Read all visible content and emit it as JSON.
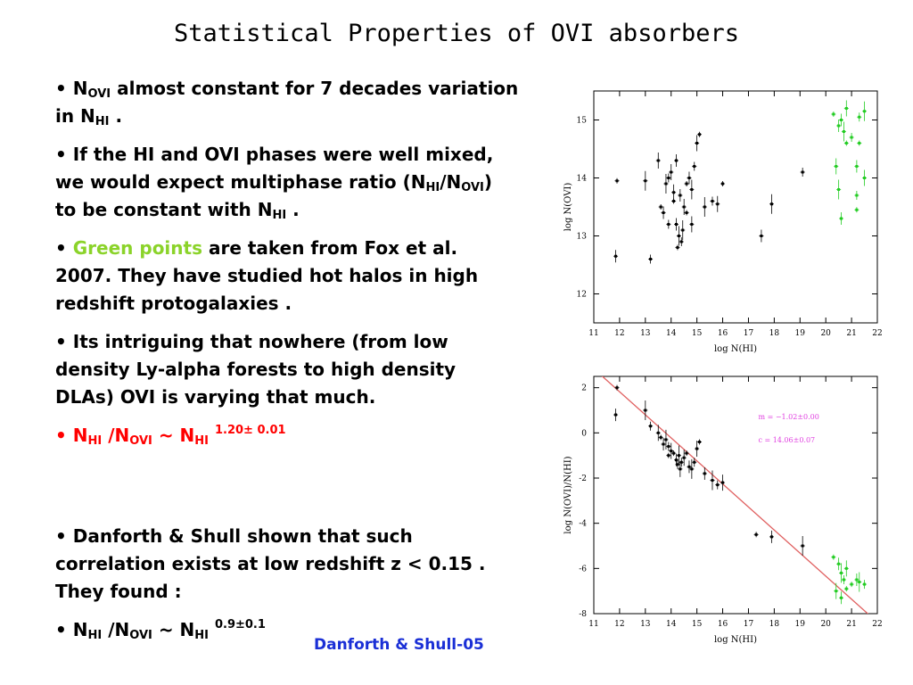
{
  "title": "Statistical Properties of OVI absorbers",
  "bullets": {
    "b1": {
      "dot": "•",
      "n": "N",
      "sub_ovi": "OVI",
      "t1": " almost constant for 7 decades variation in N",
      "sub_hi": "HI",
      "t2": " ."
    },
    "b2": {
      "dot": "•",
      "t1": " If the HI and OVI phases were well mixed, we would expect multiphase ratio (N",
      "sub1": "HI",
      "t2": "/N",
      "sub2": "OVI",
      "t3": ") to be constant with N",
      "sub3": "HI",
      "t4": " ."
    },
    "b3": {
      "dot": "•",
      "green": "Green points",
      "t1": " are taken from Fox et al. 2007.  They have studied hot halos in high redshift protogalaxies ."
    },
    "b4": {
      "dot": "•",
      "t1": " Its intriguing that nowhere (from low density Ly-alpha forests to high density DLAs) OVI is varying that much."
    },
    "b5": {
      "dot": "•",
      "n1": "N",
      "sub1": "HI",
      "t1": " /N",
      "sub2": "OVI",
      "t2": " ~ N",
      "sub3": "HI",
      "sup": "1.20± 0.01"
    },
    "b6": {
      "dot": "•",
      "t1": " Danforth & Shull shown that such correlation exists at low redshift z < 0.15 . They found :"
    },
    "b7": {
      "dot": "•",
      "n1": "N",
      "sub1": "HI",
      "t1": " /N",
      "sub2": "OVI",
      "t2": " ~ N",
      "sub3": "HI",
      "sup": "0.9±0.1"
    }
  },
  "citation": "Danforth & Shull-05",
  "colors": {
    "green": "#8bd32a",
    "red": "#ff0000",
    "citation": "#1a2fd6",
    "fit_line": "#e06060",
    "fit_text": "#e040e0"
  },
  "chart_data": [
    {
      "type": "scatter",
      "xlabel": "log N(HI)",
      "ylabel": "log N(OVI)",
      "xlim": [
        11,
        22
      ],
      "ylim": [
        11.5,
        15.5
      ],
      "xticks": [
        11,
        12,
        13,
        14,
        15,
        16,
        17,
        18,
        19,
        20,
        21,
        22
      ],
      "yticks": [
        12,
        13,
        14,
        15
      ],
      "series": [
        {
          "color": "#000000",
          "points": [
            [
              11.9,
              13.95
            ],
            [
              11.85,
              12.65
            ],
            [
              13.0,
              13.95
            ],
            [
              13.2,
              12.6
            ],
            [
              13.5,
              14.3
            ],
            [
              13.6,
              13.5
            ],
            [
              13.7,
              13.4
            ],
            [
              13.8,
              13.9
            ],
            [
              13.9,
              14.0
            ],
            [
              14.0,
              14.1
            ],
            [
              14.1,
              13.6
            ],
            [
              14.2,
              13.2
            ],
            [
              14.3,
              13.0
            ],
            [
              14.4,
              12.9
            ],
            [
              14.5,
              13.5
            ],
            [
              14.6,
              13.4
            ],
            [
              14.7,
              14.0
            ],
            [
              14.8,
              13.8
            ],
            [
              14.9,
              14.2
            ],
            [
              15.0,
              14.6
            ],
            [
              15.1,
              14.75
            ],
            [
              14.35,
              13.7
            ],
            [
              14.45,
              13.1
            ],
            [
              13.9,
              13.2
            ],
            [
              14.1,
              13.75
            ],
            [
              14.6,
              13.9
            ],
            [
              14.2,
              14.3
            ],
            [
              15.3,
              13.5
            ],
            [
              15.6,
              13.6
            ],
            [
              15.8,
              13.55
            ],
            [
              16.0,
              13.9
            ],
            [
              17.5,
              13.0
            ],
            [
              17.9,
              13.55
            ],
            [
              19.1,
              14.1
            ],
            [
              14.8,
              13.2
            ],
            [
              14.25,
              12.8
            ]
          ]
        },
        {
          "color": "#22cc22",
          "points": [
            [
              20.3,
              15.1
            ],
            [
              20.5,
              14.9
            ],
            [
              20.7,
              14.8
            ],
            [
              21.0,
              14.7
            ],
            [
              20.8,
              15.2
            ],
            [
              21.3,
              14.6
            ],
            [
              20.6,
              15.0
            ],
            [
              21.5,
              15.15
            ],
            [
              21.3,
              15.05
            ],
            [
              20.4,
              14.2
            ],
            [
              20.8,
              14.6
            ],
            [
              21.2,
              14.2
            ],
            [
              20.5,
              13.8
            ],
            [
              21.2,
              13.7
            ],
            [
              21.5,
              14.0
            ],
            [
              21.2,
              13.45
            ],
            [
              20.6,
              13.3
            ]
          ]
        }
      ]
    },
    {
      "type": "scatter",
      "xlabel": "log N(HI)",
      "ylabel": "log N(OVI)/N(HI)",
      "xlim": [
        11,
        22
      ],
      "ylim": [
        -8,
        2.5
      ],
      "xticks": [
        11,
        12,
        13,
        14,
        15,
        16,
        17,
        18,
        19,
        20,
        21,
        22
      ],
      "yticks": [
        -8,
        -6,
        -4,
        -2,
        0,
        2
      ],
      "fit": {
        "m": -1.02,
        "c": 14.06
      },
      "annotations": [
        "m = −1.02±0.00",
        "c = 14.06±0.07"
      ],
      "series": [
        {
          "color": "#000000",
          "points": [
            [
              11.9,
              2.0
            ],
            [
              11.85,
              0.8
            ],
            [
              13.0,
              1.0
            ],
            [
              13.2,
              0.3
            ],
            [
              13.5,
              0.0
            ],
            [
              13.6,
              -0.2
            ],
            [
              13.7,
              -0.5
            ],
            [
              13.8,
              -0.3
            ],
            [
              13.9,
              -0.6
            ],
            [
              14.0,
              -0.8
            ],
            [
              14.1,
              -0.9
            ],
            [
              14.2,
              -1.2
            ],
            [
              14.3,
              -1.0
            ],
            [
              14.4,
              -1.3
            ],
            [
              14.5,
              -1.1
            ],
            [
              14.6,
              -0.9
            ],
            [
              14.7,
              -1.5
            ],
            [
              14.8,
              -1.6
            ],
            [
              14.9,
              -1.3
            ],
            [
              15.0,
              -0.7
            ],
            [
              15.1,
              -0.4
            ],
            [
              15.3,
              -1.8
            ],
            [
              15.6,
              -2.1
            ],
            [
              15.8,
              -2.3
            ],
            [
              16.0,
              -2.2
            ],
            [
              17.3,
              -4.5
            ],
            [
              17.9,
              -4.6
            ],
            [
              19.1,
              -5.0
            ],
            [
              14.25,
              -1.4
            ],
            [
              14.35,
              -1.6
            ],
            [
              13.9,
              -1.0
            ]
          ]
        },
        {
          "color": "#22cc22",
          "points": [
            [
              20.3,
              -5.5
            ],
            [
              20.5,
              -5.8
            ],
            [
              20.6,
              -6.2
            ],
            [
              20.7,
              -6.5
            ],
            [
              20.8,
              -6.0
            ],
            [
              21.0,
              -6.7
            ],
            [
              21.2,
              -6.5
            ],
            [
              21.3,
              -6.6
            ],
            [
              21.5,
              -6.7
            ],
            [
              20.4,
              -7.0
            ],
            [
              20.8,
              -6.9
            ],
            [
              20.6,
              -7.3
            ]
          ]
        }
      ]
    }
  ]
}
